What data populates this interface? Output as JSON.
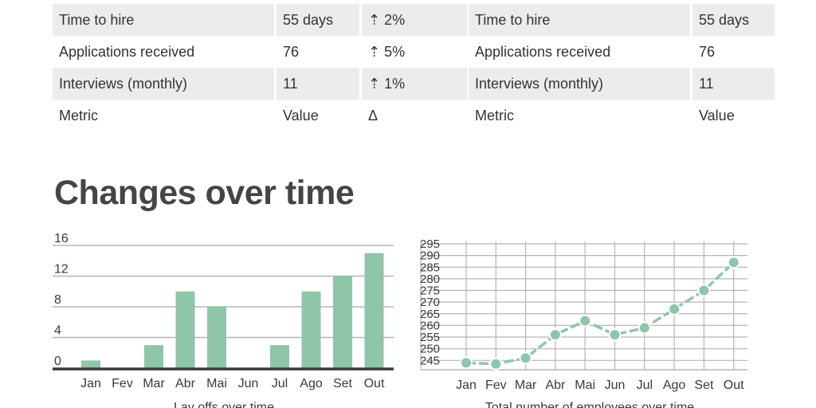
{
  "tables": [
    {
      "rows": [
        {
          "metric": "Time to hire",
          "value": "55 days",
          "delta": "⇡ 2%"
        },
        {
          "metric": "Applications received",
          "value": "76",
          "delta": "⇡ 5%"
        },
        {
          "metric": "Interviews (monthly)",
          "value": "11",
          "delta": "⇡ 1%"
        },
        {
          "metric": "Metric",
          "value": "Value",
          "delta": "Δ"
        }
      ]
    },
    {
      "rows": [
        {
          "metric": "Time to hire",
          "value": "55 days"
        },
        {
          "metric": "Applications received",
          "value": "76"
        },
        {
          "metric": "Interviews (monthly)",
          "value": "11"
        },
        {
          "metric": "Metric",
          "value": "Value"
        }
      ]
    }
  ],
  "section_title": "Changes over time",
  "colors": {
    "accent": "#8fc5a8",
    "axis": "#3a3a3a",
    "grid": "#b5b5b5",
    "row_shade": "#ececec"
  },
  "chart_data": [
    {
      "type": "bar",
      "categories": [
        "Jan",
        "Fev",
        "Mar",
        "Abr",
        "Mai",
        "Jun",
        "Jul",
        "Ago",
        "Set",
        "Out"
      ],
      "values": [
        1,
        0,
        3,
        10,
        8,
        0,
        3,
        10,
        12,
        15
      ],
      "yticks": [
        0,
        4,
        8,
        12,
        16
      ],
      "ylim": [
        0,
        16
      ],
      "xlabel": "Lay offs over time",
      "grid": "horizontal"
    },
    {
      "type": "line",
      "categories": [
        "Jan",
        "Fev",
        "Mar",
        "Abr",
        "Mai",
        "Jun",
        "Jul",
        "Ago",
        "Set",
        "Out"
      ],
      "values": [
        244,
        243.5,
        246,
        256,
        262,
        256,
        259,
        267,
        275,
        287
      ],
      "yticks": [
        245,
        250,
        255,
        260,
        265,
        270,
        275,
        280,
        285,
        290,
        295
      ],
      "ylim": [
        241,
        295
      ],
      "xlabel": "Total number of employees over time",
      "grid": "both"
    }
  ]
}
